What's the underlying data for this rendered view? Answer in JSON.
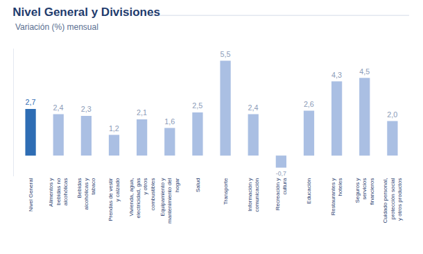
{
  "chart_data": {
    "type": "bar",
    "title": "Nivel General y Divisiones",
    "subtitle": "Variación (%) mensual",
    "categories": [
      "Nivel General",
      "Alimentos y bebidas no alcohólicas",
      "Bebidas alcohólicas y tabaco",
      "Prendas de vestir y calzado",
      "Vivienda, agua, electricidad, gas y otros combustibles",
      "Equipamiento y mantenimiento del hogar",
      "Salud",
      "Transporte",
      "Información y comunicación",
      "Recreación y cultura",
      "Educación",
      "Restaurantes y hoteles",
      "Seguros y servicios financieros",
      "Cuidado personal, protección social y otros productos"
    ],
    "values": [
      2.7,
      2.4,
      2.3,
      1.2,
      2.1,
      1.6,
      2.5,
      5.5,
      2.4,
      -0.7,
      2.6,
      4.3,
      4.5,
      2.0
    ],
    "value_labels": [
      "2,7",
      "2,4",
      "2,3",
      "1,2",
      "2,1",
      "1,6",
      "2,5",
      "5,5",
      "2,4",
      "-0,7",
      "2,6",
      "4,3",
      "4,5",
      "2,0"
    ],
    "colors": [
      "#2e6db4",
      "#aabfe3",
      "#aabfe3",
      "#aabfe3",
      "#aabfe3",
      "#aabfe3",
      "#aabfe3",
      "#aabfe3",
      "#aabfe3",
      "#aabfe3",
      "#aabfe3",
      "#aabfe3",
      "#aabfe3",
      "#aabfe3"
    ],
    "ylim": [
      -1.2,
      6.2
    ],
    "yticks": [],
    "grid": false,
    "data_labels": true,
    "tick_labels": "x"
  }
}
